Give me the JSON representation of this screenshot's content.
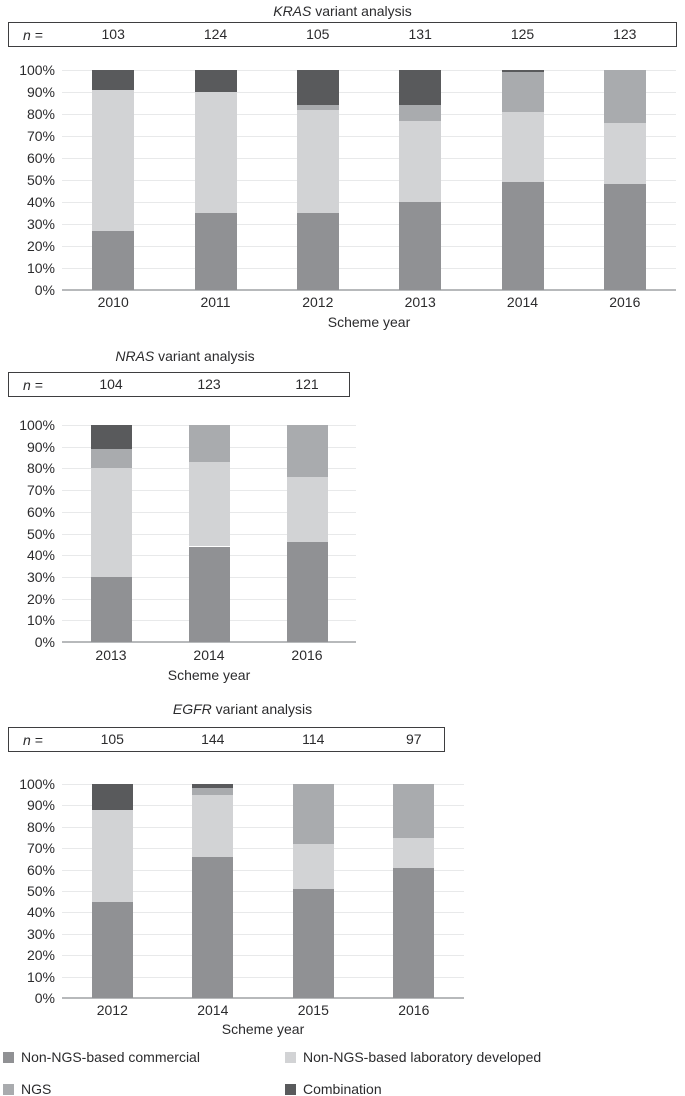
{
  "colors": {
    "commercial": "#909194",
    "lab_developed": "#d2d3d5",
    "ngs": "#a9abae",
    "combination": "#595a5c",
    "gridline": "#e8e9ea",
    "baseline": "#b7b9bb",
    "box_border": "#3e3e40",
    "text": "#2b2b2d"
  },
  "legend": {
    "items": [
      {
        "label": "Non-NGS-based commercial",
        "color_key": "commercial"
      },
      {
        "label": "Non-NGS-based laboratory developed",
        "color_key": "lab_developed"
      },
      {
        "label": "NGS",
        "color_key": "ngs"
      },
      {
        "label": "Combination",
        "color_key": "combination"
      }
    ]
  },
  "chart_data": [
    {
      "type": "bar",
      "stacked": true,
      "units": "percent of samples",
      "title_gene": "KRAS",
      "title_rest": " variant analysis",
      "n_label": "n =",
      "n_values": [
        "103",
        "124",
        "105",
        "131",
        "125",
        "123"
      ],
      "categories": [
        "2010",
        "2011",
        "2012",
        "2013",
        "2014",
        "2016"
      ],
      "xlabel": "Scheme year",
      "ylim": [
        0,
        100
      ],
      "y_tick_step": 10,
      "y_tick_suffix": "%",
      "grid": true,
      "series": [
        {
          "name": "Non-NGS-based commercial",
          "color_key": "commercial",
          "values": [
            27,
            35,
            35,
            40,
            49,
            48
          ]
        },
        {
          "name": "Non-NGS-based laboratory developed",
          "color_key": "lab_developed",
          "values": [
            64,
            55,
            47,
            37,
            32,
            28
          ]
        },
        {
          "name": "NGS",
          "color_key": "ngs",
          "values": [
            0,
            0,
            2,
            7,
            18,
            24
          ]
        },
        {
          "name": "Combination",
          "color_key": "combination",
          "values": [
            9,
            10,
            16,
            16,
            1,
            0
          ]
        }
      ]
    },
    {
      "type": "bar",
      "stacked": true,
      "units": "percent of samples",
      "title_gene": "NRAS",
      "title_rest": " variant analysis",
      "n_label": "n =",
      "n_values": [
        "104",
        "123",
        "121"
      ],
      "categories": [
        "2013",
        "2014",
        "2016"
      ],
      "xlabel": "Scheme year",
      "ylim": [
        0,
        100
      ],
      "y_tick_step": 10,
      "y_tick_suffix": "%",
      "grid": true,
      "series": [
        {
          "name": "Non-NGS-based commercial",
          "color_key": "commercial",
          "values": [
            30,
            44,
            46
          ]
        },
        {
          "name": "Non-NGS-based laboratory developed",
          "color_key": "lab_developed",
          "values": [
            50,
            39,
            30
          ]
        },
        {
          "name": "NGS",
          "color_key": "ngs",
          "values": [
            9,
            17,
            24
          ]
        },
        {
          "name": "Combination",
          "color_key": "combination",
          "values": [
            11,
            0,
            0
          ]
        }
      ]
    },
    {
      "type": "bar",
      "stacked": true,
      "units": "percent of samples",
      "title_gene": "EGFR",
      "title_rest": " variant analysis",
      "n_label": "n =",
      "n_values": [
        "105",
        "144",
        "114",
        "97"
      ],
      "categories": [
        "2012",
        "2014",
        "2015",
        "2016"
      ],
      "xlabel": "Scheme year",
      "ylim": [
        0,
        100
      ],
      "y_tick_step": 10,
      "y_tick_suffix": "%",
      "grid": true,
      "series": [
        {
          "name": "Non-NGS-based commercial",
          "color_key": "commercial",
          "values": [
            45,
            66,
            51,
            61
          ]
        },
        {
          "name": "Non-NGS-based laboratory developed",
          "color_key": "lab_developed",
          "values": [
            43,
            29,
            21,
            14
          ]
        },
        {
          "name": "NGS",
          "color_key": "ngs",
          "values": [
            0,
            3,
            28,
            25
          ]
        },
        {
          "name": "Combination",
          "color_key": "combination",
          "values": [
            12,
            2,
            0,
            0
          ]
        }
      ]
    }
  ]
}
